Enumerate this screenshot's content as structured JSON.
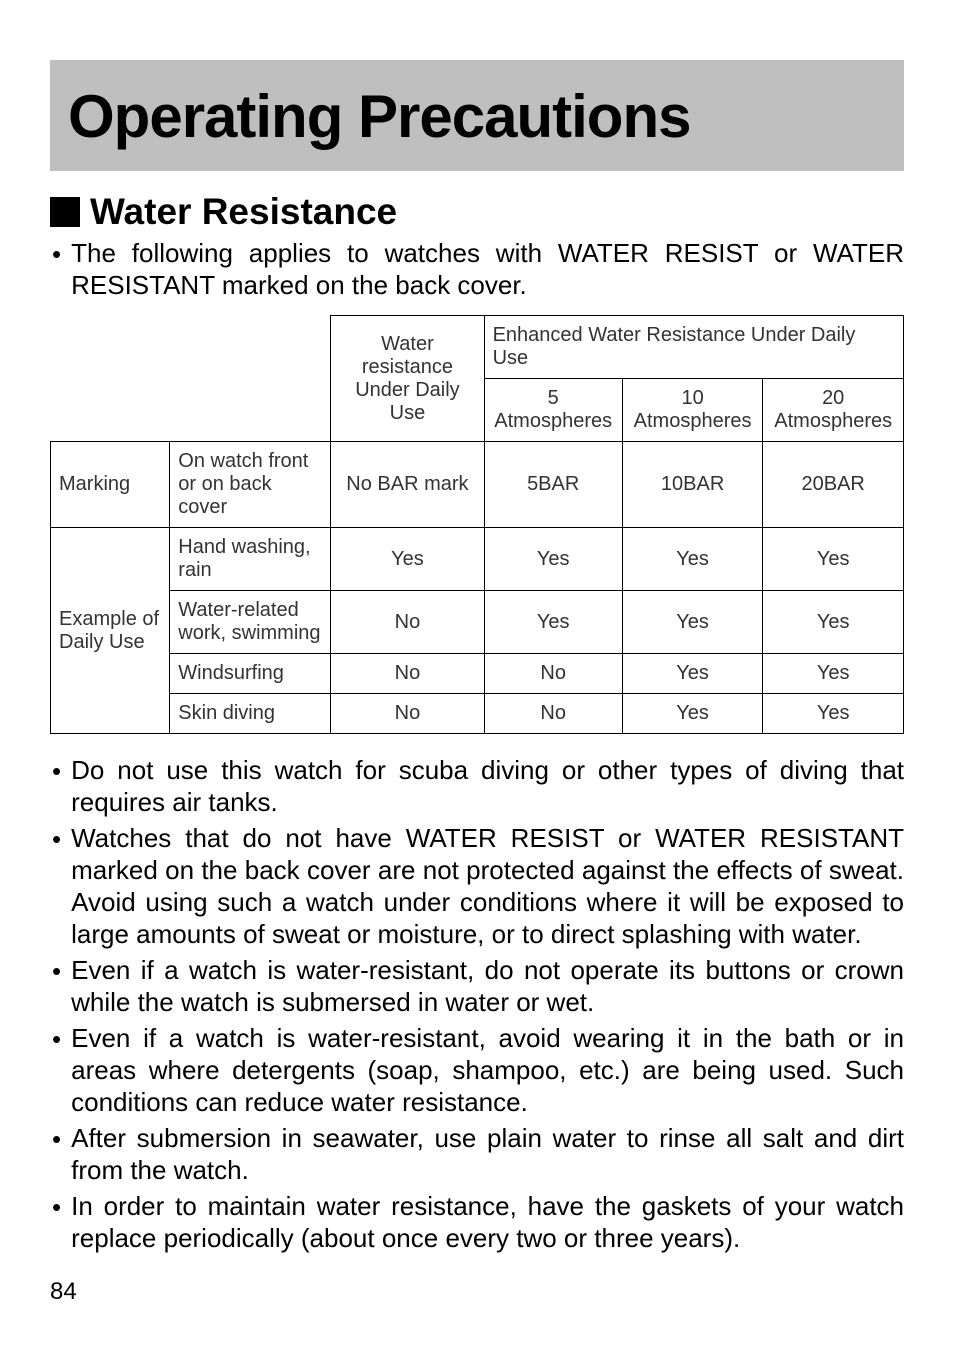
{
  "title": "Operating Precautions",
  "section_heading": "Water Resistance",
  "intro_bullet": "The following applies to watches with WATER RESIST or WATER RESISTANT marked on the back cover.",
  "table": {
    "header": {
      "top_cell": "Water resistance Under Daily Use",
      "enhanced_header": "Enhanced Water Resistance Under Daily Use",
      "sub1": "5 Atmospheres",
      "sub2": "10 Atmospheres",
      "sub3": "20 Atmospheres"
    },
    "rows": {
      "marking": {
        "label": "Marking",
        "desc": "On watch front or on back cover",
        "c1": "No BAR mark",
        "c2": "5BAR",
        "c3": "10BAR",
        "c4": "20BAR"
      },
      "example_label": "Example of Daily Use",
      "hand": {
        "desc": "Hand washing, rain",
        "c1": "Yes",
        "c2": "Yes",
        "c3": "Yes",
        "c4": "Yes"
      },
      "waterwork": {
        "desc": "Water-related work, swimming",
        "c1": "No",
        "c2": "Yes",
        "c3": "Yes",
        "c4": "Yes"
      },
      "windsurf": {
        "desc": "Windsurfing",
        "c1": "No",
        "c2": "No",
        "c3": "Yes",
        "c4": "Yes"
      },
      "skin": {
        "desc": "Skin diving",
        "c1": "No",
        "c2": "No",
        "c3": "Yes",
        "c4": "Yes"
      }
    }
  },
  "bullets": [
    "Do not use this watch for scuba diving or other types of diving that requires air tanks.",
    "Watches that do not have WATER RESIST or WATER RESISTANT marked on the back cover are not protected against the effects of sweat. Avoid using such a watch under conditions where it will be exposed to large amounts of sweat or moisture, or to direct splashing with water.",
    "Even if a watch is water-resistant, do not operate its buttons or crown while the watch is submersed in water or wet.",
    "Even if a watch is water-resistant, avoid wearing it in the bath or in areas where detergents (soap, shampoo, etc.) are being used. Such conditions can reduce water resistance.",
    "After submersion in seawater, use plain water to rinse all salt and dirt from the watch.",
    "In order to maintain water resistance, have the gaskets of your watch replace periodically (about once every two or three years)."
  ],
  "page_number": "84",
  "style": {
    "banner_bg": "#bfbfbf",
    "title_fontsize": 60,
    "heading_fontsize": 37,
    "body_fontsize": 26,
    "table_fontsize": 20,
    "table_border_color": "#000000",
    "text_color": "#000000",
    "table_text_color": "#333333",
    "background": "#ffffff"
  }
}
